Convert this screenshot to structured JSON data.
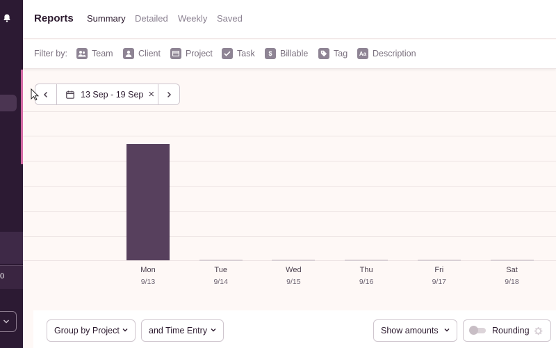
{
  "header": {
    "title": "Reports",
    "tabs": [
      {
        "label": "Summary",
        "active": true
      },
      {
        "label": "Detailed",
        "active": false
      },
      {
        "label": "Weekly",
        "active": false
      },
      {
        "label": "Saved",
        "active": false
      }
    ]
  },
  "filters": {
    "label": "Filter by:",
    "items": [
      {
        "label": "Team",
        "icon": "team-icon"
      },
      {
        "label": "Client",
        "icon": "client-icon"
      },
      {
        "label": "Project",
        "icon": "project-icon"
      },
      {
        "label": "Task",
        "icon": "task-icon"
      },
      {
        "label": "Billable",
        "icon": "billable-icon"
      },
      {
        "label": "Tag",
        "icon": "tag-icon"
      },
      {
        "label": "Description",
        "icon": "description-icon"
      }
    ]
  },
  "date_picker": {
    "range": "13 Sep - 19 Sep"
  },
  "chart_data": {
    "type": "bar",
    "categories": [
      "Mon",
      "Tue",
      "Wed",
      "Thu",
      "Fri",
      "Sat"
    ],
    "dates": [
      "9/13",
      "9/14",
      "9/15",
      "9/16",
      "9/17",
      "9/18"
    ],
    "values": [
      0.94,
      0,
      0,
      0,
      0,
      0
    ],
    "bar_color": "#57405d"
  },
  "toolbar": {
    "group_by": "Group by Project",
    "and_by": "and Time Entry",
    "show_amounts": "Show amounts",
    "rounding": "Rounding"
  },
  "colors": {
    "sidebar": "#2c1a33",
    "accent": "#d36aa4",
    "background": "#fef8f6"
  }
}
